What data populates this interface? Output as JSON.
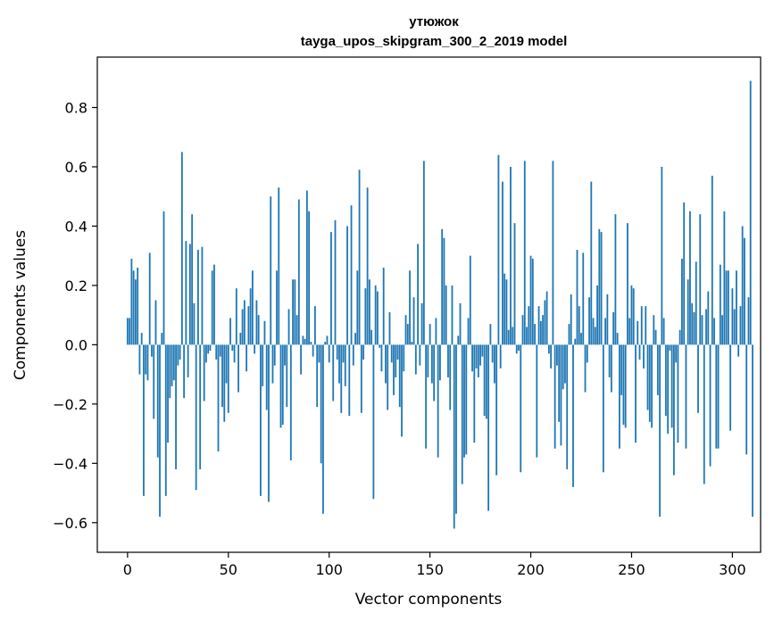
{
  "chart_data": {
    "type": "bar",
    "title": "утюжок",
    "subtitle": "tayga_upos_skipgram_300_2_2019 model",
    "xlabel": "Vector components",
    "ylabel": "Components values",
    "xlim": [
      -15,
      314
    ],
    "ylim": [
      -0.7,
      0.97
    ],
    "xticks": [
      0,
      50,
      100,
      150,
      200,
      250,
      300
    ],
    "yticks": [
      -0.6,
      -0.4,
      -0.2,
      0.0,
      0.2,
      0.4,
      0.6,
      0.8
    ],
    "bar_color": "#1f77b4",
    "values": [
      0.09,
      0.09,
      0.29,
      0.25,
      0.22,
      0.26,
      -0.1,
      0.04,
      -0.51,
      -0.1,
      -0.12,
      0.31,
      -0.04,
      -0.25,
      0.15,
      -0.38,
      -0.58,
      0.04,
      0.45,
      -0.51,
      -0.33,
      -0.18,
      -0.14,
      -0.12,
      -0.42,
      -0.07,
      -0.05,
      0.65,
      -0.18,
      0.35,
      -0.11,
      0.34,
      0.44,
      0.14,
      -0.49,
      0.32,
      -0.42,
      0.33,
      -0.19,
      -0.06,
      -0.03,
      -0.02,
      0.25,
      0.27,
      -0.05,
      -0.36,
      -0.04,
      -0.21,
      -0.26,
      -0.13,
      -0.23,
      0.09,
      -0.02,
      -0.06,
      0.19,
      -0.16,
      0.04,
      0.12,
      0.15,
      -0.09,
      0.13,
      0.19,
      0.25,
      -0.03,
      0.15,
      0.1,
      -0.51,
      -0.14,
      0.08,
      -0.22,
      -0.53,
      0.5,
      -0.13,
      -0.07,
      0.25,
      0.53,
      -0.28,
      -0.27,
      -0.07,
      -0.21,
      0.12,
      -0.39,
      0.22,
      0.22,
      0.1,
      0.49,
      -0.1,
      0.03,
      0.02,
      0.52,
      0.45,
      0.01,
      -0.04,
      0.13,
      -0.21,
      -0.06,
      -0.4,
      -0.57,
      0.01,
      0.03,
      -0.06,
      0.38,
      -0.19,
      0.42,
      -0.05,
      -0.13,
      -0.23,
      -0.06,
      -0.14,
      0.4,
      -0.24,
      0.47,
      -0.07,
      0.04,
      0.25,
      0.59,
      -0.23,
      -0.05,
      0.19,
      0.53,
      0.22,
      0.05,
      -0.52,
      0.2,
      0.18,
      -0.01,
      -0.09,
      0.26,
      -0.13,
      -0.22,
      0.11,
      -0.06,
      -0.17,
      -0.11,
      -0.05,
      -0.21,
      -0.31,
      -0.09,
      0.1,
      0.07,
      0.25,
      0.01,
      0.16,
      -0.1,
      0.34,
      -0.07,
      0.14,
      0.62,
      -0.35,
      -0.11,
      0.07,
      -0.13,
      -0.19,
      0.09,
      -0.38,
      -0.12,
      0.39,
      0.36,
      0.2,
      -0.11,
      -0.22,
      0.2,
      -0.62,
      -0.57,
      0.03,
      0.14,
      -0.47,
      -0.38,
      -0.37,
      0.09,
      0.3,
      -0.09,
      -0.33,
      -0.08,
      -0.11,
      -0.07,
      -0.04,
      -0.24,
      -0.25,
      -0.56,
      0.07,
      -0.06,
      -0.13,
      -0.44,
      0.64,
      -0.08,
      0.55,
      0.24,
      0.22,
      0.05,
      0.6,
      0.06,
      0.41,
      -0.03,
      -0.02,
      -0.43,
      0.1,
      0.62,
      0.06,
      0.13,
      0.3,
      0.29,
      0.07,
      -0.38,
      0.13,
      0.08,
      0.1,
      0.15,
      0.18,
      -0.03,
      -0.08,
      0.62,
      -0.35,
      -0.07,
      -0.26,
      -0.34,
      -0.15,
      -0.13,
      -0.42,
      0.07,
      0.17,
      -0.48,
      0.02,
      0.32,
      0.13,
      0.04,
      0.31,
      -0.16,
      -0.06,
      0.16,
      0.55,
      0.09,
      0.06,
      0.2,
      0.39,
      0.38,
      -0.43,
      0.09,
      0.17,
      -0.11,
      -0.16,
      0.11,
      0.44,
      0.04,
      -0.35,
      -0.17,
      -0.27,
      -0.28,
      0.41,
      0.09,
      0.2,
      0.19,
      -0.33,
      0.08,
      -0.05,
      0.13,
      -0.08,
      0.13,
      -0.22,
      -0.26,
      -0.28,
      0.1,
      0.05,
      -0.17,
      -0.58,
      0.6,
      0.09,
      -0.24,
      -0.3,
      -0.02,
      -0.28,
      -0.44,
      -0.06,
      -0.33,
      0.05,
      0.29,
      0.48,
      -0.35,
      0.22,
      0.45,
      0.14,
      0.11,
      0.28,
      -0.23,
      0.44,
      0.1,
      -0.47,
      0.12,
      0.18,
      -0.41,
      0.57,
      0.09,
      -0.35,
      -0.35,
      0.27,
      0.1,
      0.45,
      0.25,
      0.25,
      -0.29,
      0.19,
      0.12,
      0.25,
      -0.04,
      0.13,
      0.4,
      0.36,
      -0.37,
      0.16,
      0.89,
      -0.58,
      0.0
    ]
  }
}
